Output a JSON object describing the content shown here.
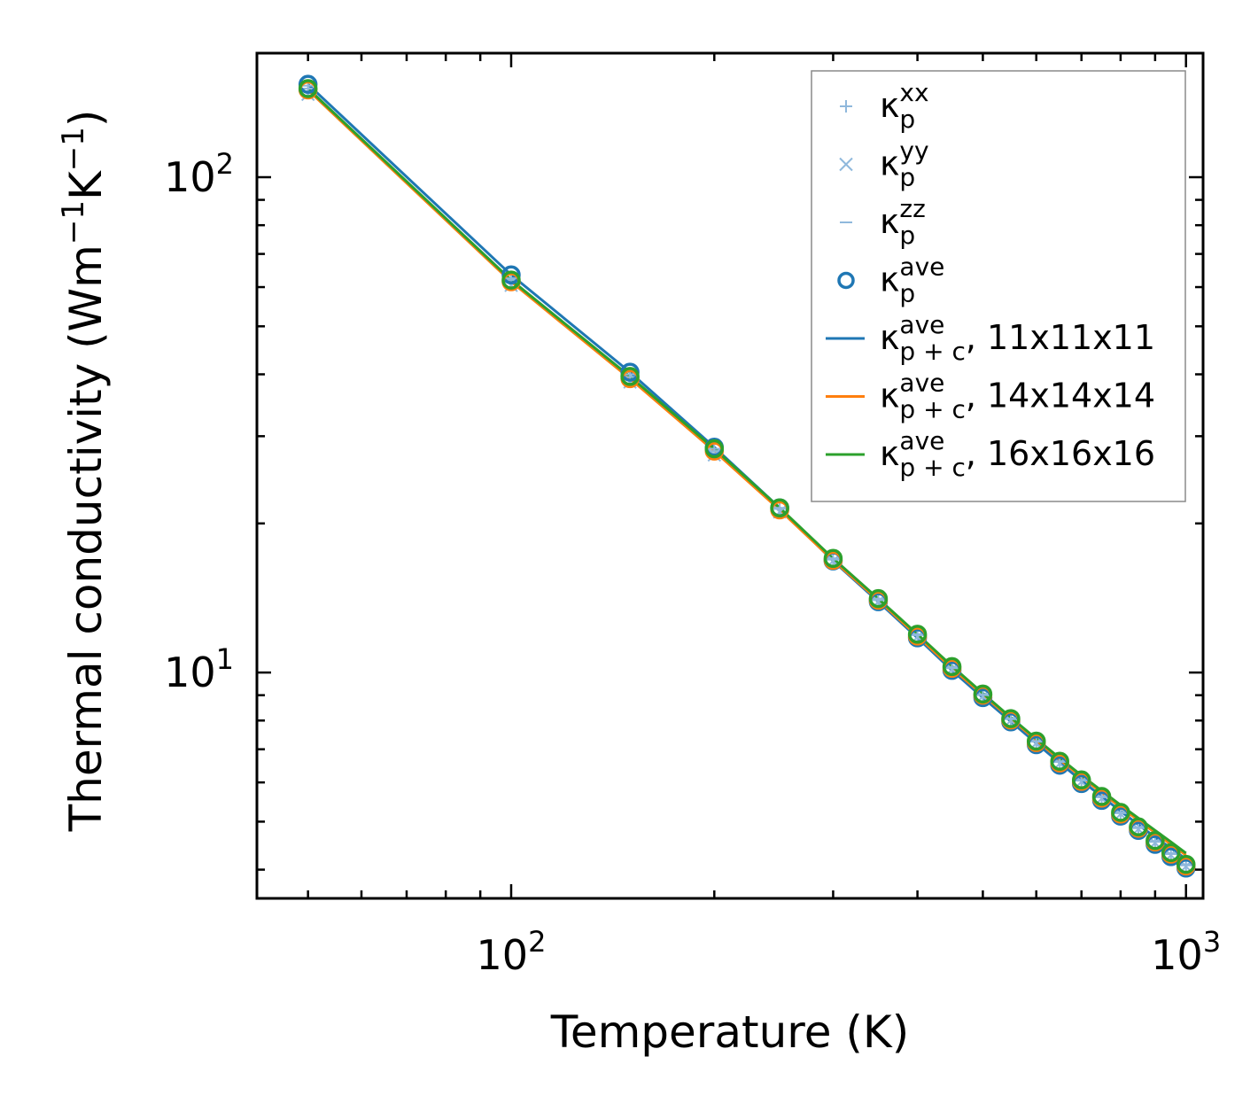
{
  "chart_data": {
    "type": "line",
    "scale": {
      "x": "log",
      "y": "log"
    },
    "xlabel": "Temperature (K)",
    "ylabel": {
      "main": "Thermal conductivity (Wm",
      "sup1": "−1",
      "mid": "K",
      "sup2": "−1",
      "end": ")"
    },
    "xlim": [
      42,
      1060
    ],
    "ylim": [
      3.5,
      178
    ],
    "x_major_ticks": [
      {
        "value": 100,
        "base": "10",
        "exp": "2"
      },
      {
        "value": 1000,
        "base": "10",
        "exp": "3"
      }
    ],
    "y_major_ticks": [
      {
        "value": 10,
        "base": "10",
        "exp": "1"
      },
      {
        "value": 100,
        "base": "10",
        "exp": "2"
      }
    ],
    "temperatures": [
      50,
      100,
      150,
      200,
      250,
      300,
      350,
      400,
      450,
      500,
      550,
      600,
      650,
      700,
      750,
      800,
      850,
      900,
      950,
      1000
    ],
    "series": [
      {
        "name": "kappa_p_xx",
        "kind": "marker",
        "marker": "+",
        "color": "#8fb8dc",
        "values": [
          151,
          62,
          39.5,
          28,
          21.4,
          16.9,
          14.0,
          11.9,
          10.2,
          9.0,
          8.05,
          7.25,
          6.6,
          6.05,
          5.6,
          5.2,
          4.85,
          4.55,
          4.3,
          4.08
        ]
      },
      {
        "name": "kappa_p_yy",
        "kind": "marker",
        "marker": "x",
        "color": "#8fb8dc",
        "values": [
          147,
          60.5,
          38.6,
          27.5,
          21.1,
          16.8,
          13.9,
          11.8,
          10.15,
          8.95,
          8.0,
          7.2,
          6.55,
          6.02,
          5.57,
          5.18,
          4.83,
          4.53,
          4.28,
          4.06
        ]
      },
      {
        "name": "kappa_p_zz",
        "kind": "marker",
        "marker": "_",
        "color": "#8fb8dc",
        "values": [
          153,
          62.5,
          40.0,
          28.3,
          21.5,
          17.0,
          14.1,
          11.95,
          10.25,
          9.02,
          8.07,
          7.27,
          6.62,
          6.07,
          5.62,
          5.22,
          4.87,
          4.57,
          4.32,
          4.1
        ]
      },
      {
        "name": "kappa_p_ave_11",
        "kind": "circle",
        "color": "#1f77b4",
        "values": [
          154,
          63.5,
          40.4,
          28.5,
          21.5,
          16.8,
          13.9,
          11.75,
          10.1,
          8.9,
          7.95,
          7.15,
          6.5,
          5.97,
          5.52,
          5.13,
          4.8,
          4.5,
          4.25,
          4.03
        ]
      },
      {
        "name": "kappa_p_ave_14",
        "kind": "circle",
        "color": "#ff7f0e",
        "values": [
          150,
          61.5,
          39.2,
          28.0,
          21.3,
          16.85,
          14.0,
          11.85,
          10.2,
          9.0,
          8.02,
          7.22,
          6.57,
          6.03,
          5.58,
          5.18,
          4.85,
          4.55,
          4.3,
          4.07
        ]
      },
      {
        "name": "kappa_p_ave_16",
        "kind": "circle",
        "color": "#2ca02c",
        "values": [
          151,
          62,
          39.6,
          28.3,
          21.5,
          17.0,
          14.1,
          11.95,
          10.28,
          9.05,
          8.07,
          7.27,
          6.62,
          6.07,
          5.62,
          5.22,
          4.88,
          4.58,
          4.33,
          4.1
        ]
      },
      {
        "name": "kappa_pc_ave_11",
        "kind": "line",
        "color": "#1f77b4",
        "values": [
          154,
          63.5,
          40.4,
          28.5,
          21.5,
          16.8,
          13.9,
          11.75,
          10.1,
          8.9,
          7.97,
          7.2,
          6.57,
          6.05,
          5.62,
          5.25,
          4.93,
          4.65,
          4.42,
          4.2
        ]
      },
      {
        "name": "kappa_pc_ave_14",
        "kind": "line",
        "color": "#ff7f0e",
        "values": [
          150,
          61.5,
          39.2,
          28.0,
          21.3,
          16.85,
          14.0,
          11.85,
          10.2,
          9.02,
          8.07,
          7.3,
          6.67,
          6.15,
          5.72,
          5.35,
          5.03,
          4.75,
          4.5,
          4.28
        ]
      },
      {
        "name": "kappa_pc_ave_16",
        "kind": "line",
        "color": "#2ca02c",
        "values": [
          151,
          62,
          39.6,
          28.3,
          21.5,
          17.0,
          14.1,
          11.95,
          10.3,
          9.08,
          8.12,
          7.35,
          6.72,
          6.2,
          5.77,
          5.4,
          5.08,
          4.8,
          4.55,
          4.32
        ]
      }
    ],
    "legend": {
      "position": "top-right",
      "entries": [
        {
          "marker": "+",
          "color": "#8fb8dc",
          "sym": "κ",
          "sub": "p",
          "sup": "xx",
          "suffix": ""
        },
        {
          "marker": "x",
          "color": "#8fb8dc",
          "sym": "κ",
          "sub": "p",
          "sup": "yy",
          "suffix": ""
        },
        {
          "marker": "_",
          "color": "#8fb8dc",
          "sym": "κ",
          "sub": "p",
          "sup": "zz",
          "suffix": ""
        },
        {
          "marker": "o",
          "color": "#1f77b4",
          "sym": "κ",
          "sub": "p",
          "sup": "ave",
          "suffix": ""
        },
        {
          "marker": "line",
          "color": "#1f77b4",
          "sym": "κ",
          "sub": "p + c",
          "sup": "ave",
          "suffix": ", 11x11x11"
        },
        {
          "marker": "line",
          "color": "#ff7f0e",
          "sym": "κ",
          "sub": "p + c",
          "sup": "ave",
          "suffix": ", 14x14x14"
        },
        {
          "marker": "line",
          "color": "#2ca02c",
          "sym": "κ",
          "sub": "p + c",
          "sup": "ave",
          "suffix": ", 16x16x16"
        }
      ]
    }
  }
}
